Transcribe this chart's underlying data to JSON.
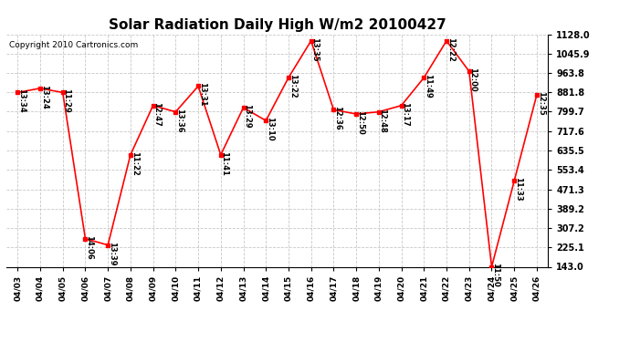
{
  "title": "Solar Radiation Daily High W/m2 20100427",
  "copyright": "Copyright 2010 Cartronics.com",
  "dates": [
    "04/03",
    "04/04",
    "04/05",
    "04/06",
    "04/07",
    "04/08",
    "04/09",
    "04/10",
    "04/11",
    "04/12",
    "04/13",
    "04/14",
    "04/15",
    "04/16",
    "04/17",
    "04/18",
    "04/19",
    "04/20",
    "04/21",
    "04/22",
    "04/23",
    "04/24",
    "04/25",
    "04/26"
  ],
  "values": [
    881,
    899,
    881,
    262,
    235,
    617,
    826,
    799,
    908,
    617,
    817,
    762,
    944,
    1100,
    808,
    790,
    799,
    826,
    944,
    1100,
    971,
    143,
    507,
    872
  ],
  "times": [
    "13:34",
    "13:24",
    "11:29",
    "14:06",
    "13:39",
    "11:22",
    "12:47",
    "13:36",
    "13:31",
    "11:41",
    "13:29",
    "13:10",
    "13:22",
    "13:35",
    "12:36",
    "12:50",
    "12:48",
    "13:17",
    "11:49",
    "12:22",
    "12:00",
    "11:50",
    "11:33",
    "12:35"
  ],
  "line_color": "#ff0000",
  "marker_color": "#ff0000",
  "background_color": "#ffffff",
  "grid_color": "#c8c8c8",
  "ylim": [
    143.0,
    1128.0
  ],
  "yticks": [
    143.0,
    225.1,
    307.2,
    389.2,
    471.3,
    553.4,
    635.5,
    717.6,
    799.7,
    881.8,
    963.8,
    1045.9,
    1128.0
  ],
  "title_fontsize": 11,
  "annotation_fontsize": 6.0,
  "copyright_fontsize": 6.5,
  "xtick_fontsize": 6.5,
  "ytick_fontsize": 7.0
}
